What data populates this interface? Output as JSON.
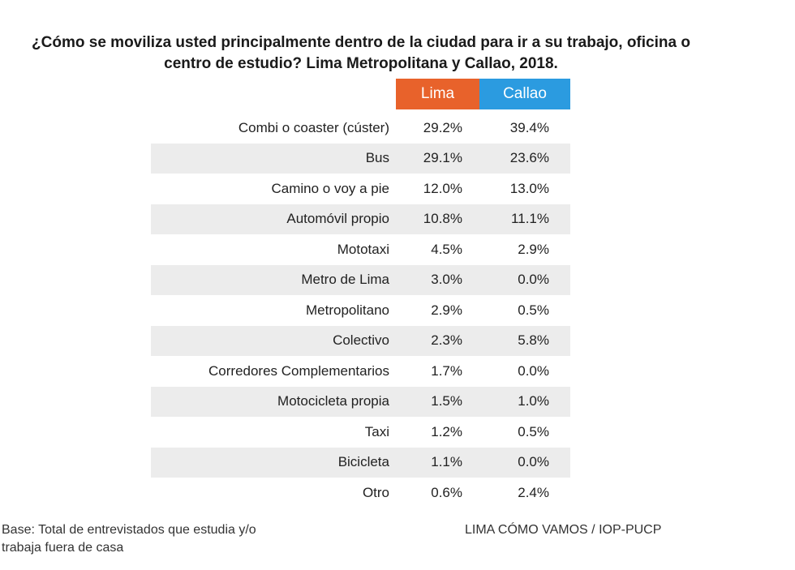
{
  "title": "¿Cómo se moviliza usted principalmente dentro de la ciudad para ir a su trabajo, oficina o centro de estudio? Lima Metropolitana y Callao, 2018.",
  "title_line1": "¿Cómo se moviliza usted principalmente dentro de la ciudad para ir a su trabajo, oficina o",
  "title_line2": "centro de estudio? Lima Metropolitana y Callao, 2018.",
  "colors": {
    "lima": "#E8622B",
    "callao": "#2B9BE0",
    "stripe": "#ECECEC"
  },
  "footer": {
    "base_line1": "Base: Total de entrevistados que estudia y/o",
    "base_line2": "trabaja fuera de casa",
    "source": "LIMA CÓMO VAMOS / IOP-PUCP"
  },
  "chart_data": {
    "type": "table",
    "title": "¿Cómo se moviliza usted principalmente dentro de la ciudad para ir a su trabajo, oficina o centro de estudio? Lima Metropolitana y Callao, 2018.",
    "columns": [
      "",
      "Lima",
      "Callao"
    ],
    "unit": "%",
    "rows": [
      {
        "label": "Combi o coaster (cúster)",
        "lima": "29.2%",
        "callao": "39.4%"
      },
      {
        "label": "Bus",
        "lima": "29.1%",
        "callao": "23.6%"
      },
      {
        "label": "Camino o voy a pie",
        "lima": "12.0%",
        "callao": "13.0%"
      },
      {
        "label": "Automóvil propio",
        "lima": "10.8%",
        "callao": "11.1%"
      },
      {
        "label": "Mototaxi",
        "lima": "4.5%",
        "callao": "2.9%"
      },
      {
        "label": "Metro de Lima",
        "lima": "3.0%",
        "callao": "0.0%"
      },
      {
        "label": "Metropolitano",
        "lima": "2.9%",
        "callao": "0.5%"
      },
      {
        "label": "Colectivo",
        "lima": "2.3%",
        "callao": "5.8%"
      },
      {
        "label": "Corredores Complementarios",
        "lima": "1.7%",
        "callao": "0.0%"
      },
      {
        "label": "Motocicleta propia",
        "lima": "1.5%",
        "callao": "1.0%"
      },
      {
        "label": "Taxi",
        "lima": "1.2%",
        "callao": "0.5%"
      },
      {
        "label": "Bicicleta",
        "lima": "1.1%",
        "callao": "0.0%"
      },
      {
        "label": "Otro",
        "lima": "0.6%",
        "callao": "2.4%"
      }
    ]
  }
}
